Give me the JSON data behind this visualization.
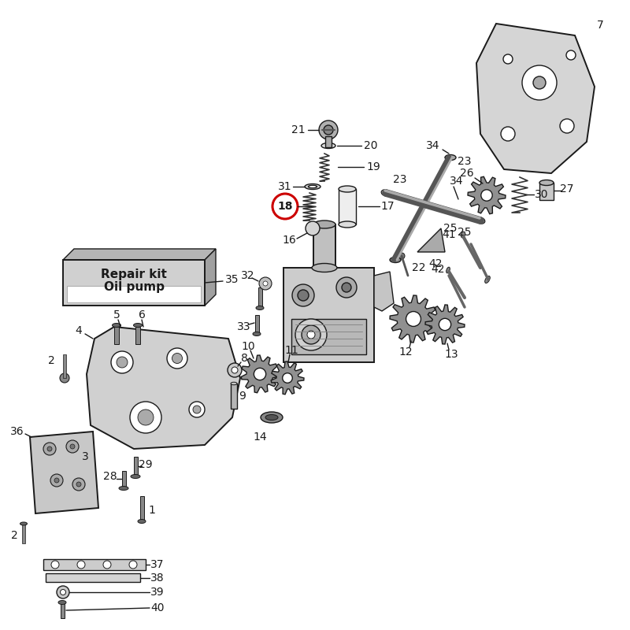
{
  "bg_color": "#ffffff",
  "lc": "#1a1a1a",
  "red": "#cc0000",
  "gray1": "#c8c8c8",
  "gray2": "#a0a0a0",
  "gray3": "#e0e0e0",
  "gray4": "#888888",
  "repair_kit_line1": "Repair kit",
  "repair_kit_line2": "Oil pump",
  "fig_w": 8.0,
  "fig_h": 8.0,
  "dpi": 100
}
